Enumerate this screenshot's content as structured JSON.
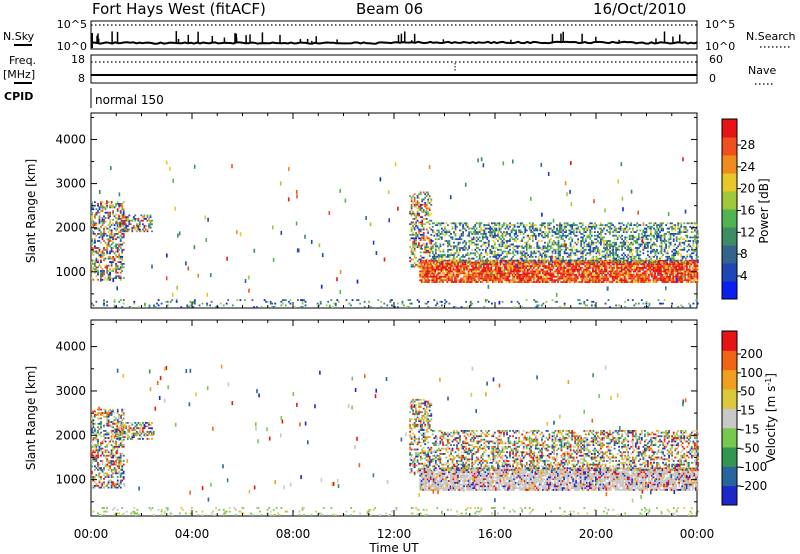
{
  "header": {
    "title": "Fort Hays West (fitACF)",
    "beam": "Beam 06",
    "date": "16/Oct/2010"
  },
  "sky_panel": {
    "left_label": "N.Sky",
    "left_ticks": [
      "10^5",
      "10^0"
    ],
    "right_ticks": [
      "10^5",
      "10^0"
    ],
    "right_label": "N.Search"
  },
  "freq_panel": {
    "left_label_1": "Freq.",
    "left_label_2": "[MHz]",
    "left_ticks": [
      "18",
      "8"
    ],
    "right_ticks": [
      "60",
      "0"
    ],
    "right_label": "Nave"
  },
  "cpid": {
    "label": "CPID",
    "mode": "normal 150"
  },
  "x_axis": {
    "label": "Time UT",
    "ticks": [
      "00:00",
      "04:00",
      "08:00",
      "12:00",
      "16:00",
      "20:00",
      "00:00"
    ]
  },
  "chart_data": [
    {
      "type": "heatmap",
      "name": "power",
      "ylabel": "Slant Range [km]",
      "yticks": [
        "1000",
        "2000",
        "3000",
        "4000"
      ],
      "ylim": [
        180,
        4600
      ],
      "xlim_hours": [
        0,
        24
      ],
      "colorbar": {
        "label": "Power [dB]",
        "ticks": [
          "4",
          "8",
          "12",
          "16",
          "20",
          "24",
          "28"
        ],
        "colors": [
          "#0a1ef0",
          "#1e46b4",
          "#32648c",
          "#3c8c64",
          "#50b450",
          "#a0c83c",
          "#e6c828",
          "#f08c1e",
          "#f0501e",
          "#e61414"
        ]
      },
      "regions": [
        {
          "t": [
            0.0,
            1.3
          ],
          "r": [
            800,
            2600
          ],
          "level": "mixed"
        },
        {
          "t": [
            1.0,
            2.4
          ],
          "r": [
            1900,
            2300
          ],
          "level": "mixed"
        },
        {
          "t": [
            12.6,
            13.5
          ],
          "r": [
            1100,
            2800
          ],
          "level": "mixed"
        },
        {
          "t": [
            13.0,
            24.0
          ],
          "r": [
            750,
            1250
          ],
          "level": "high"
        },
        {
          "t": [
            13.5,
            24.0
          ],
          "r": [
            1200,
            2100
          ],
          "level": "low"
        },
        {
          "t": [
            0.0,
            24.0
          ],
          "r": [
            180,
            350
          ],
          "level": "scattered"
        }
      ]
    },
    {
      "type": "heatmap",
      "name": "velocity",
      "ylabel": "Slant Range [km]",
      "yticks": [
        "1000",
        "2000",
        "3000",
        "4000"
      ],
      "ylim": [
        180,
        4600
      ],
      "xlim_hours": [
        0,
        24
      ],
      "colorbar": {
        "label": "Velocity [m s^-1]",
        "ticks": [
          "200",
          "100",
          "50",
          "15",
          "-15",
          "-50",
          "-100",
          "-200"
        ],
        "colors": [
          "#1e28c8",
          "#2864a0",
          "#329650",
          "#78c850",
          "#c8c8c8",
          "#dcc83c",
          "#f0a01e",
          "#f06414",
          "#e61414"
        ]
      },
      "regions": [
        {
          "t": [
            0.0,
            1.3
          ],
          "r": [
            800,
            2600
          ],
          "level": "mixed"
        },
        {
          "t": [
            1.0,
            2.4
          ],
          "r": [
            1900,
            2300
          ],
          "level": "mixed"
        },
        {
          "t": [
            12.6,
            13.5
          ],
          "r": [
            1100,
            2800
          ],
          "level": "mixed"
        },
        {
          "t": [
            13.0,
            24.0
          ],
          "r": [
            750,
            1250
          ],
          "level": "ground"
        },
        {
          "t": [
            13.5,
            24.0
          ],
          "r": [
            1200,
            2100
          ],
          "level": "mixed"
        },
        {
          "t": [
            0.0,
            24.0
          ],
          "r": [
            180,
            350
          ],
          "level": "scattered"
        }
      ]
    }
  ]
}
